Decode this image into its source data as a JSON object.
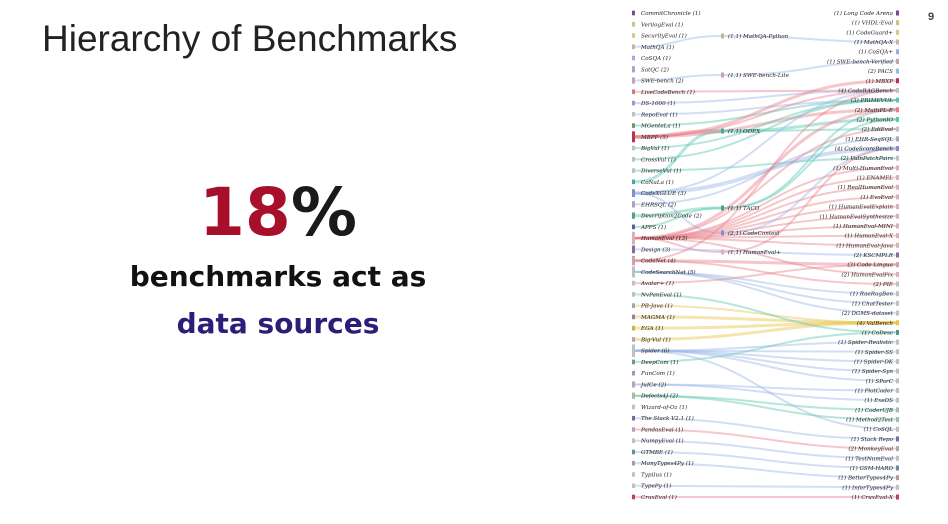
{
  "slide": {
    "title": "Hierarchy of Benchmarks",
    "page_number": "9",
    "stat_number": "18",
    "stat_unit": "%",
    "stat_line1": "benchmarks act as",
    "stat_line2": "data sources"
  },
  "colors": {
    "title": "#222222",
    "stat_number": "#a80f2a",
    "stat_line2": "#2b1d78",
    "flow_red": "#e8808c",
    "flow_teal": "#5cc7b2",
    "flow_yellow": "#e7c44a",
    "flow_blue": "#9ab6e6"
  },
  "diagram": {
    "left_nodes": [
      {
        "label": "CommitChronicle (1)",
        "color": "#7a4a8c"
      },
      {
        "label": "VerilogEval (1)",
        "color": "#d0c27a"
      },
      {
        "label": "SecurityEval (1)",
        "color": "#d7c97e"
      },
      {
        "label": "MathQA (1)",
        "color": "#c4b5a0"
      },
      {
        "label": "CoSQA (1)",
        "color": "#9ab0d8"
      },
      {
        "label": "SatQC (2)",
        "color": "#b0a0d0"
      },
      {
        "label": "SWE-bench (2)",
        "color": "#c8a0b0"
      },
      {
        "label": "LiveCodeBench (1)",
        "color": "#c98080"
      },
      {
        "label": "DS-1000 (1)",
        "color": "#9a9ad0"
      },
      {
        "label": "RepoEval (1)",
        "color": "#c0c0c0"
      },
      {
        "label": "MGenteLa (1)",
        "color": "#6a9a6a"
      },
      {
        "label": "MBPP (5)",
        "color": "#c0304a"
      },
      {
        "label": "BigVul (1)",
        "color": "#c0c0c0"
      },
      {
        "label": "CrossVul (1)",
        "color": "#c0c0c0"
      },
      {
        "label": "DiverseVul (1)",
        "color": "#c0c0c0"
      },
      {
        "label": "CoNaLa (1)",
        "color": "#4aa8a0"
      },
      {
        "label": "CodeXGLUE (3)",
        "color": "#8a8ad0"
      },
      {
        "label": "EHRSQL (2)",
        "color": "#b0a0c0"
      },
      {
        "label": "Description2Code (2)",
        "color": "#5a9a8a"
      },
      {
        "label": "APPS (1)",
        "color": "#5a5aa0"
      },
      {
        "label": "HumanEval (13)",
        "color": "#d8b0b8"
      },
      {
        "label": "Design (3)",
        "color": "#8a6aa0"
      },
      {
        "label": "CodeNet (4)",
        "color": "#d0a0b0"
      },
      {
        "label": "CodeSearchNet (5)",
        "color": "#c0c0c0"
      },
      {
        "label": "Avatar+ (1)",
        "color": "#c0c0c0"
      },
      {
        "label": "NvPanEval (1)",
        "color": "#c0c0c0"
      },
      {
        "label": "PB-Java (1)",
        "color": "#a0a0c0"
      },
      {
        "label": "MAGMA (1)",
        "color": "#a07aa0"
      },
      {
        "label": "EGA (1)",
        "color": "#d0b040"
      },
      {
        "label": "Big-Vul (1)",
        "color": "#c0a0a0"
      },
      {
        "label": "Spider (6)",
        "color": "#c0c0c0"
      },
      {
        "label": "DeepCom (1)",
        "color": "#6a9a9a"
      },
      {
        "label": "FunCom (1)",
        "color": "#9a9aba"
      },
      {
        "label": "JuICe (2)",
        "color": "#c0a0c0"
      },
      {
        "label": "Defects4J (2)",
        "color": "#a0c0a0"
      },
      {
        "label": "Wizard-of-Oz (1)",
        "color": "#c0c0c0"
      },
      {
        "label": "The Stack V2.1 (1)",
        "color": "#7a6aa0"
      },
      {
        "label": "PandasEval (1)",
        "color": "#c0a0b0"
      },
      {
        "label": "NumpyEval (1)",
        "color": "#c0c0c0"
      },
      {
        "label": "GTMBE (1)",
        "color": "#6a8aa0"
      },
      {
        "label": "ManyTypes4Py (1)",
        "color": "#b09a9a"
      },
      {
        "label": "TypiIus (1)",
        "color": "#c0c0c0"
      },
      {
        "label": "TypePy (1)",
        "color": "#c0c0c0"
      },
      {
        "label": "CruxEval (1)",
        "color": "#c04050"
      }
    ],
    "middle_nodes": [
      {
        "label": "(1,1) MathQA-Python",
        "color": "#c4b5a0"
      },
      {
        "label": "(1,1) SWE-bench-Lite",
        "color": "#c8a0b0"
      },
      {
        "label": "(1,1) ODEX",
        "color": "#4aa8a0"
      },
      {
        "label": "(1,1) TACO",
        "color": "#5a9a8a"
      },
      {
        "label": "(2,1) CodeContest",
        "color": "#8a8ad0"
      },
      {
        "label": "(1,1) HumanEval+",
        "color": "#d8b0b8"
      }
    ],
    "right_nodes": [
      {
        "label": "(1) Long Code Arena",
        "color": "#7a4a8c"
      },
      {
        "label": "(1) VHDL-Eval",
        "color": "#d0c27a"
      },
      {
        "label": "(1) CodeGuard+",
        "color": "#d7c97e"
      },
      {
        "label": "(1) MathQA-X",
        "color": "#c4b5a0"
      },
      {
        "label": "(1) CoSQA+",
        "color": "#9ab0d8"
      },
      {
        "label": "(1) SWE-bench-Verified",
        "color": "#c8a0b0"
      },
      {
        "label": "(2) PACS",
        "color": "#9ab6e6"
      },
      {
        "label": "(1) MBXP",
        "color": "#c0304a"
      },
      {
        "label": "(4) CodeRAGBench",
        "color": "#c0c0c0"
      },
      {
        "label": "(3) PRIMEVUL",
        "color": "#5cc7b2"
      },
      {
        "label": "(2) MultiPL-E",
        "color": "#e8808c"
      },
      {
        "label": "(2) PythonIO",
        "color": "#5cc7b2"
      },
      {
        "label": "(2) EdiEval",
        "color": "#c0c0c0"
      },
      {
        "label": "(1) EHR-SeqSQL",
        "color": "#b0a0c0"
      },
      {
        "label": "(4) CodeScoreBench",
        "color": "#8a8ad0"
      },
      {
        "label": "(2) VulnPatchPairs",
        "color": "#c0c0c0"
      },
      {
        "label": "(1) Multi-HumanEval",
        "color": "#d8b0b8"
      },
      {
        "label": "(1) ENAMEL",
        "color": "#d8b0b8"
      },
      {
        "label": "(1) RealHumanEval",
        "color": "#d8b0b8"
      },
      {
        "label": "(1) EvoEval",
        "color": "#d8b0b8"
      },
      {
        "label": "(1) HumanEvalExplain",
        "color": "#d8b0b8"
      },
      {
        "label": "(1) HumanEvalSynthesize",
        "color": "#d8b0b8"
      },
      {
        "label": "(1) HumanEval-MINI",
        "color": "#d8b0b8"
      },
      {
        "label": "(1) HumanEval-X",
        "color": "#d8b0b8"
      },
      {
        "label": "(1) HumanEval-Java",
        "color": "#d8b0b8"
      },
      {
        "label": "(2) KSCMPLR",
        "color": "#8a6aa0"
      },
      {
        "label": "(3) Code Lingua",
        "color": "#d0a0b0"
      },
      {
        "label": "(2) HumanEvalFix",
        "color": "#d8b0b8"
      },
      {
        "label": "(2) PIE",
        "color": "#c0c0c0"
      },
      {
        "label": "(1) RaeRagBen",
        "color": "#c0c0c0"
      },
      {
        "label": "(1) ChatTester",
        "color": "#c0c0c0"
      },
      {
        "label": "(2) DGMS-dataset",
        "color": "#c0c0c0"
      },
      {
        "label": "(4) ValBench",
        "color": "#e7c44a"
      },
      {
        "label": "(1) CoDesc",
        "color": "#4a9a7a"
      },
      {
        "label": "(1) Spider-Realistic",
        "color": "#c0c0c0"
      },
      {
        "label": "(1) Spider-SS",
        "color": "#c0c0c0"
      },
      {
        "label": "(1) Spider-DK",
        "color": "#c0c0c0"
      },
      {
        "label": "(1) Spider-Syn",
        "color": "#c0c0c0"
      },
      {
        "label": "(1) SParC",
        "color": "#c0c0c0"
      },
      {
        "label": "(1) PlotCoder",
        "color": "#c0c0c0"
      },
      {
        "label": "(1) ExeDS",
        "color": "#c0c0c0"
      },
      {
        "label": "(1) CoderUJB",
        "color": "#a0c0a0"
      },
      {
        "label": "(1) Method2Test",
        "color": "#a0c0a0"
      },
      {
        "label": "(1) CoSQL",
        "color": "#c0c0c0"
      },
      {
        "label": "(1) Stack Repo",
        "color": "#7a6aa0"
      },
      {
        "label": "(2) MonkeyEval",
        "color": "#c0a0b0"
      },
      {
        "label": "(1) TestNumEval",
        "color": "#c0c0c0"
      },
      {
        "label": "(1) GSM-HARD",
        "color": "#6a8aa0"
      },
      {
        "label": "(1) BetterTypes4Py",
        "color": "#b09a9a"
      },
      {
        "label": "(1) InferTypes4Py",
        "color": "#c0c0c0"
      },
      {
        "label": "(1) CruxEval-X",
        "color": "#c04050"
      }
    ]
  }
}
